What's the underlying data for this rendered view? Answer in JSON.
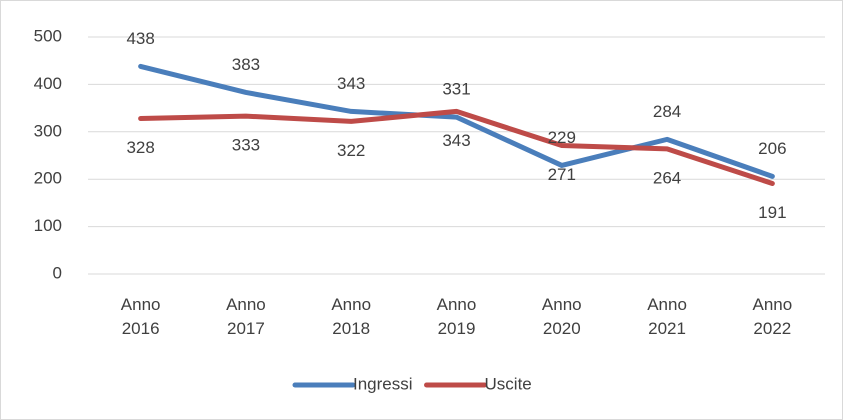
{
  "chart_data": {
    "type": "line",
    "categories": [
      "Anno 2016",
      "Anno 2017",
      "Anno 2018",
      "Anno 2019",
      "Anno 2020",
      "Anno 2021",
      "Anno 2022"
    ],
    "series": [
      {
        "name": "Ingressi",
        "color": "#4a7ebb",
        "values": [
          438,
          383,
          343,
          331,
          229,
          284,
          206
        ]
      },
      {
        "name": "Uscite",
        "color": "#be4b48",
        "values": [
          328,
          333,
          322,
          343,
          271,
          264,
          191
        ]
      }
    ],
    "ylim": [
      0,
      500
    ],
    "yticks": [
      0,
      100,
      200,
      300,
      400,
      500
    ],
    "grid": true,
    "legend": "bottom"
  }
}
